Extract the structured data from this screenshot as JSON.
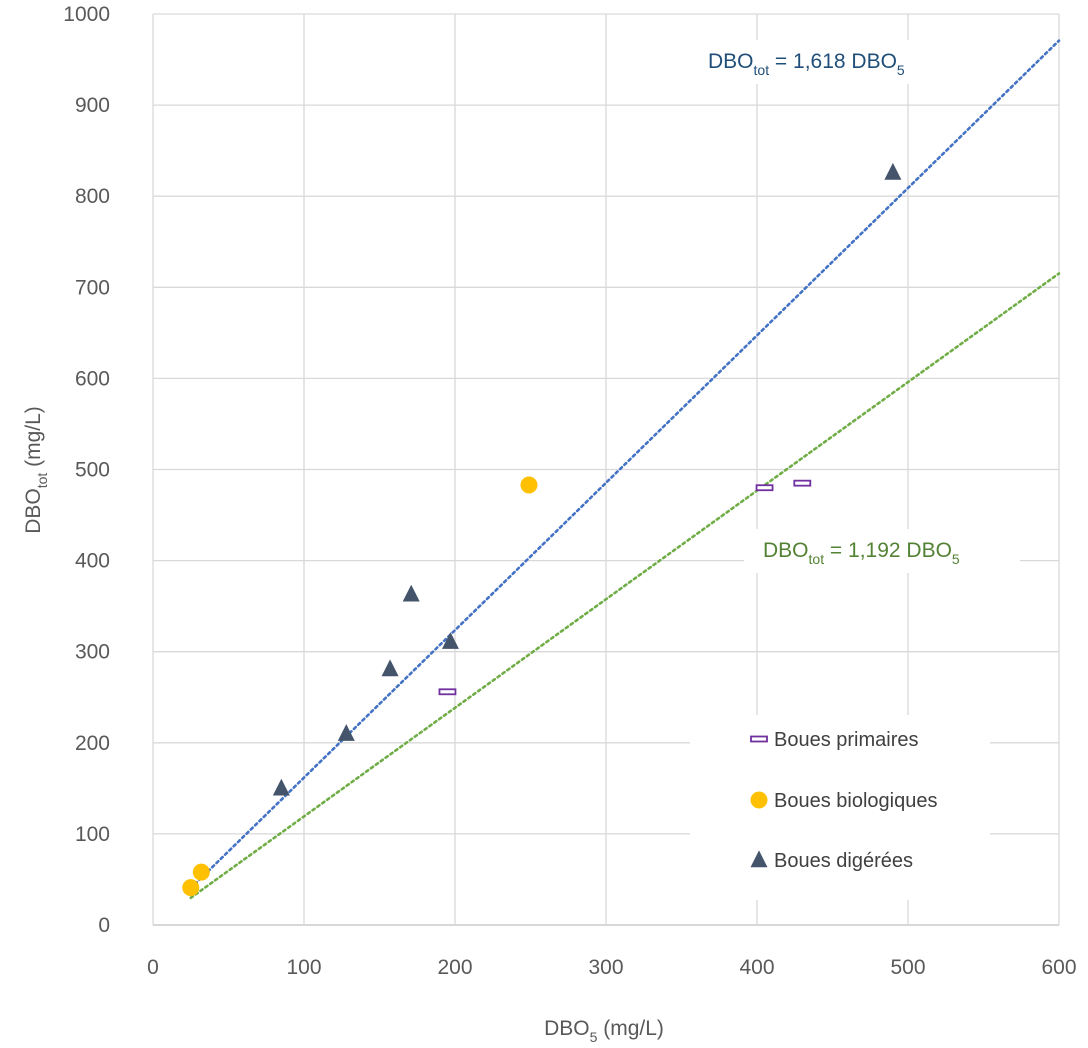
{
  "chart_data": {
    "type": "scatter",
    "title": "",
    "xlabel": {
      "main": "DBO",
      "sub": "5",
      "tail": " (mg/L)"
    },
    "ylabel": {
      "main": "DBO",
      "sub": "tot",
      "tail": " (mg/L)"
    },
    "xlim": [
      0,
      600
    ],
    "ylim": [
      0,
      1000
    ],
    "xticks": [
      0,
      100,
      200,
      300,
      400,
      500,
      600
    ],
    "yticks": [
      0,
      100,
      200,
      300,
      400,
      500,
      600,
      700,
      800,
      900,
      1000
    ],
    "grid": true,
    "legend_position": "bottom-right",
    "series": [
      {
        "name": "Boues primaires",
        "marker": "dash",
        "color": "#7030A0",
        "points": [
          [
            195,
            256
          ],
          [
            405,
            480
          ],
          [
            430,
            485
          ]
        ]
      },
      {
        "name": "Boues biologiques",
        "marker": "circle",
        "color": "#FFC000",
        "points": [
          [
            25,
            41
          ],
          [
            32,
            58
          ],
          [
            249,
            483
          ]
        ]
      },
      {
        "name": "Boues digérées",
        "marker": "triangle",
        "color": "#44546A",
        "points": [
          [
            85,
            150
          ],
          [
            128,
            210
          ],
          [
            157,
            281
          ],
          [
            171,
            363
          ],
          [
            197,
            311
          ],
          [
            490,
            826
          ]
        ]
      }
    ],
    "trendlines": [
      {
        "slope": 1.618,
        "x_range": [
          25,
          600
        ],
        "color": "#4472C4",
        "label": {
          "pre": "DBO",
          "sub1": "tot",
          "mid": " = 1,618 DBO",
          "sub2": "5"
        }
      },
      {
        "slope": 1.192,
        "x_range": [
          25,
          600
        ],
        "color": "#70AD47",
        "label": {
          "pre": "DBO",
          "sub1": "tot",
          "mid": " = 1,192 DBO",
          "sub2": "5"
        }
      }
    ]
  }
}
